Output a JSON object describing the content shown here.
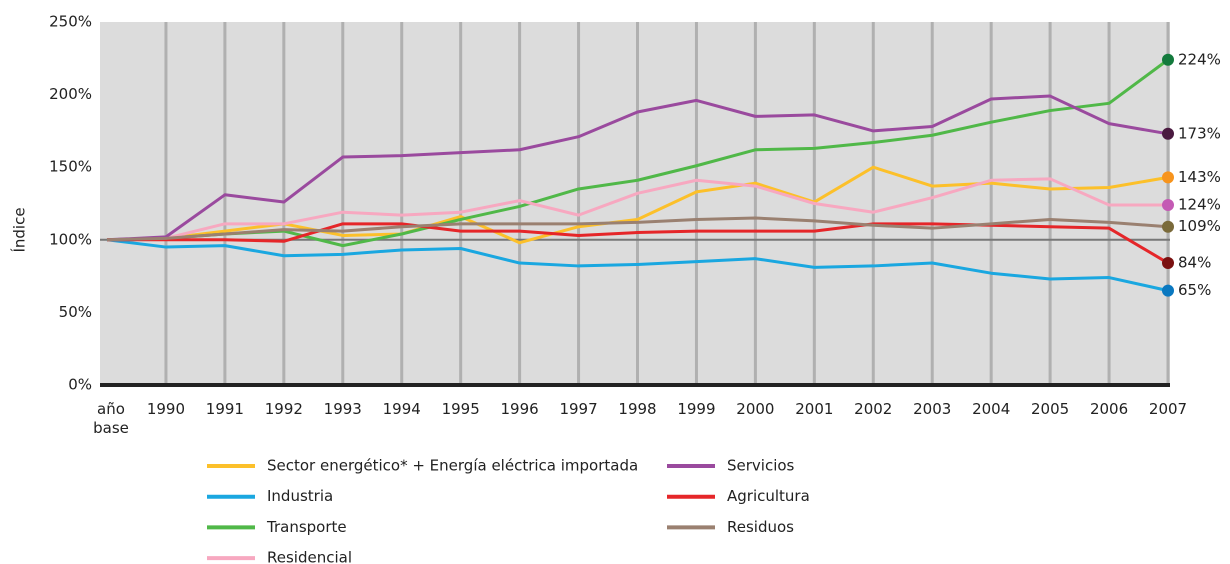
{
  "chart_data": {
    "type": "line",
    "y_label": "Índice",
    "categories": [
      "año base",
      "1990",
      "1991",
      "1992",
      "1993",
      "1994",
      "1995",
      "1996",
      "1997",
      "1998",
      "1999",
      "2000",
      "2001",
      "2002",
      "2003",
      "2004",
      "2005",
      "2006",
      "2007"
    ],
    "ylim": [
      0,
      250
    ],
    "yticks": [
      {
        "value": 0,
        "label": "0%"
      },
      {
        "value": 50,
        "label": "50%"
      },
      {
        "value": 100,
        "label": "100%"
      },
      {
        "value": 150,
        "label": "150%"
      },
      {
        "value": 200,
        "label": "200%"
      },
      {
        "value": 250,
        "label": "250%"
      }
    ],
    "reference_line": 100,
    "grid": "vertical",
    "series": [
      {
        "name": "Sector energético* + Energía eléctrica importada",
        "color": "#fcc02a",
        "marker_color": "#f7941d",
        "values": [
          100,
          101,
          106,
          111,
          103,
          104,
          116,
          98,
          109,
          114,
          133,
          139,
          126,
          150,
          137,
          139,
          135,
          136,
          143
        ],
        "value_labels": [
          null,
          null,
          null,
          null,
          null,
          null,
          null,
          null,
          null,
          null,
          null,
          null,
          null,
          null,
          null,
          null,
          null,
          null,
          "143%"
        ]
      },
      {
        "name": "Industria",
        "color": "#1aa7e0",
        "marker_color": "#0a78c0",
        "values": [
          100,
          95,
          96,
          89,
          90,
          93,
          94,
          84,
          82,
          83,
          85,
          87,
          81,
          82,
          84,
          77,
          73,
          74,
          65
        ],
        "value_labels": [
          null,
          null,
          null,
          null,
          null,
          null,
          null,
          null,
          null,
          null,
          null,
          null,
          null,
          null,
          null,
          null,
          null,
          null,
          "65%"
        ]
      },
      {
        "name": "Transporte",
        "color": "#50b848",
        "marker_color": "#137a3c",
        "values": [
          100,
          101,
          104,
          106,
          96,
          104,
          114,
          123,
          135,
          141,
          151,
          162,
          163,
          167,
          172,
          181,
          189,
          194,
          224
        ],
        "value_labels": [
          null,
          null,
          null,
          null,
          null,
          null,
          null,
          null,
          null,
          null,
          null,
          null,
          null,
          null,
          null,
          null,
          null,
          null,
          "224%"
        ]
      },
      {
        "name": "Residencial",
        "color": "#f7a8c0",
        "marker_color": "#c45ab4",
        "values": [
          100,
          101,
          111,
          111,
          119,
          117,
          119,
          127,
          117,
          132,
          141,
          137,
          125,
          119,
          129,
          141,
          142,
          124,
          124
        ],
        "value_labels": [
          null,
          null,
          null,
          null,
          null,
          null,
          null,
          null,
          null,
          null,
          null,
          null,
          null,
          null,
          null,
          null,
          null,
          null,
          "124%"
        ]
      },
      {
        "name": "Servicios",
        "color": "#9a4a9e",
        "marker_color": "#4a1a40",
        "values": [
          100,
          102,
          131,
          126,
          157,
          158,
          160,
          162,
          171,
          188,
          196,
          185,
          186,
          175,
          178,
          197,
          199,
          180,
          173
        ],
        "value_labels": [
          null,
          null,
          null,
          null,
          null,
          null,
          null,
          null,
          null,
          null,
          null,
          null,
          null,
          null,
          null,
          null,
          null,
          null,
          "173%"
        ]
      },
      {
        "name": "Agricultura",
        "color": "#e52629",
        "marker_color": "#7a1010",
        "values": [
          100,
          100,
          100,
          99,
          111,
          111,
          106,
          106,
          103,
          105,
          106,
          106,
          106,
          111,
          111,
          110,
          109,
          108,
          84
        ],
        "value_labels": [
          null,
          null,
          null,
          null,
          null,
          null,
          null,
          null,
          null,
          null,
          null,
          null,
          null,
          null,
          null,
          null,
          null,
          null,
          "84%"
        ]
      },
      {
        "name": "Residuos",
        "color": "#9a8070",
        "marker_color": "#7a6a3a",
        "values": [
          100,
          101,
          104,
          107,
          106,
          109,
          111,
          111,
          111,
          112,
          114,
          115,
          113,
          110,
          108,
          111,
          114,
          112,
          109
        ],
        "value_labels": [
          null,
          null,
          null,
          null,
          null,
          null,
          null,
          null,
          null,
          null,
          null,
          null,
          null,
          null,
          null,
          null,
          null,
          null,
          "109%"
        ]
      }
    ]
  }
}
